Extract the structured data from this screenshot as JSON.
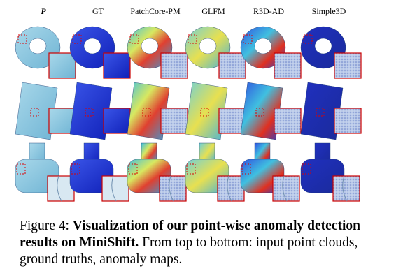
{
  "figure": {
    "columns": [
      "P",
      "GT",
      "PatchCore-PM",
      "GLFM",
      "R3D-AD",
      "Simple3D"
    ],
    "caption": {
      "label": "Figure 4:",
      "bold": "Visualization of our point-wise anomaly detection results on MiniShift.",
      "text": "From top to bottom: input point clouds, ground truths, anomaly maps."
    }
  }
}
